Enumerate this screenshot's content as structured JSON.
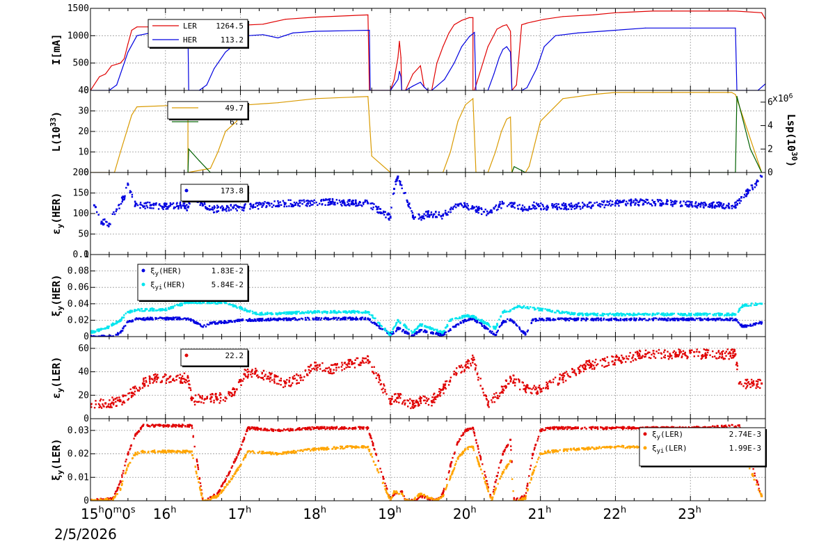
{
  "date_label": "2/5/2026",
  "x_axis": {
    "unit": "hour",
    "start_label": "15h0m0s",
    "labels": [
      "16h",
      "17h",
      "18h",
      "19h",
      "20h",
      "21h",
      "22h",
      "23h"
    ],
    "range": [
      15.0,
      24.0
    ]
  },
  "chart_data": [
    {
      "type": "line",
      "panel": "current",
      "ylabel": "I[mA]",
      "ylim": [
        0,
        1500
      ],
      "yticks": [
        "0",
        "500",
        "1000",
        "1500"
      ],
      "legend": [
        {
          "name": "LER",
          "value": "1264.5",
          "color": "#e00000"
        },
        {
          "name": "HER",
          "value": "113.2",
          "color": "#0000e0"
        }
      ],
      "series": [
        {
          "name": "LER",
          "color": "#e00000",
          "x": [
            15.0,
            15.12,
            15.2,
            15.28,
            15.4,
            15.45,
            15.5,
            15.55,
            15.62,
            16.3,
            16.3,
            16.32,
            17.0,
            17.3,
            17.6,
            18.0,
            18.7,
            18.72,
            19.0,
            19.05,
            19.1,
            19.12,
            19.14,
            19.15,
            19.2,
            19.3,
            19.4,
            19.45,
            19.5,
            19.52,
            19.55,
            19.62,
            19.7,
            19.78,
            19.85,
            19.95,
            20.05,
            20.1,
            20.1,
            20.12,
            20.3,
            20.42,
            20.5,
            20.55,
            20.6,
            20.62,
            20.68,
            20.75,
            20.8,
            20.82,
            21.05,
            21.3,
            21.7,
            22.0,
            22.5,
            23.0,
            23.6,
            23.95,
            24.0
          ],
          "y": [
            0,
            250,
            300,
            450,
            500,
            580,
            850,
            1100,
            1160,
            1160,
            1200,
            1180,
            1190,
            1210,
            1300,
            1340,
            1380,
            0,
            0,
            200,
            600,
            900,
            600,
            0,
            0,
            300,
            450,
            60,
            0,
            0,
            0,
            500,
            800,
            1050,
            1200,
            1280,
            1330,
            1330,
            0,
            0,
            800,
            1120,
            1180,
            1200,
            1080,
            0,
            100,
            1200,
            1220,
            1230,
            1300,
            1350,
            1380,
            1420,
            1450,
            1450,
            1450,
            1420,
            1300
          ]
        },
        {
          "name": "HER",
          "color": "#0000e0",
          "x": [
            15.0,
            15.25,
            15.35,
            15.5,
            15.62,
            15.8,
            16.3,
            16.31,
            16.45,
            16.55,
            16.65,
            16.8,
            16.95,
            17.1,
            17.3,
            17.5,
            17.7,
            18.0,
            18.72,
            18.73,
            19.0,
            19.05,
            19.1,
            19.12,
            19.14,
            19.15,
            19.2,
            19.3,
            19.4,
            19.45,
            19.5,
            19.52,
            19.55,
            19.72,
            19.85,
            19.95,
            20.05,
            20.12,
            20.14,
            20.3,
            20.38,
            20.45,
            20.5,
            20.55,
            20.6,
            20.62,
            20.75,
            20.82,
            20.95,
            21.05,
            21.2,
            21.5,
            22.0,
            22.4,
            23.0,
            23.6,
            23.62,
            23.9,
            24.0
          ],
          "y": [
            0,
            0,
            100,
            700,
            1000,
            1050,
            1060,
            0,
            0,
            100,
            400,
            700,
            870,
            1000,
            1020,
            960,
            1050,
            1080,
            1100,
            0,
            0,
            100,
            200,
            350,
            250,
            0,
            0,
            80,
            150,
            60,
            0,
            0,
            0,
            200,
            500,
            800,
            980,
            1060,
            0,
            0,
            300,
            600,
            750,
            800,
            700,
            0,
            0,
            50,
            400,
            800,
            1000,
            1050,
            1100,
            1140,
            1140,
            1140,
            0,
            0,
            120
          ]
        }
      ]
    },
    {
      "type": "line",
      "panel": "luminosity",
      "ylabel": "L(10^33)",
      "y2label": "Lsp(10^30)",
      "y2mult": "x10^6",
      "ylim": [
        0,
        40
      ],
      "y2lim": [
        0,
        7
      ],
      "yticks": [
        "0",
        "10",
        "20",
        "30",
        "40"
      ],
      "y2ticks": [
        "0",
        "2",
        "4",
        "6"
      ],
      "legend": [
        {
          "value": "49.7",
          "color": "#d99a00"
        },
        {
          "value": "6.1",
          "color": "#006000"
        }
      ],
      "series": [
        {
          "name": "L",
          "color": "#d99a00",
          "x": [
            15.0,
            15.32,
            15.4,
            15.5,
            15.55,
            15.62,
            16.3,
            16.3,
            16.6,
            16.7,
            16.8,
            16.95,
            17.0,
            17.1,
            17.5,
            18.0,
            18.7,
            18.75,
            19.0,
            19.5,
            19.7,
            19.8,
            19.9,
            20.0,
            20.1,
            20.14,
            20.3,
            20.4,
            20.48,
            20.55,
            20.6,
            20.62,
            20.8,
            20.85,
            21.0,
            21.3,
            21.7,
            22.0,
            22.5,
            23.0,
            23.55,
            23.6,
            23.95
          ],
          "y": [
            0,
            0,
            10,
            22,
            28,
            32,
            33,
            0,
            2,
            10,
            20,
            25,
            32,
            33,
            34,
            36,
            37,
            8,
            0,
            0,
            0,
            10,
            25,
            33,
            36,
            0,
            0,
            10,
            20,
            26,
            27,
            0,
            0,
            3,
            25,
            36,
            38,
            39,
            39,
            39,
            39,
            38,
            0
          ]
        },
        {
          "name": "Lsp",
          "color": "#006000",
          "x": [
            16.3,
            16.31,
            16.45,
            16.6,
            20.62,
            20.65,
            20.8,
            23.6,
            23.62,
            23.8,
            23.95
          ],
          "y": [
            0,
            2,
            1,
            0,
            0,
            0.5,
            0,
            0,
            6.5,
            2,
            0
          ]
        }
      ]
    },
    {
      "type": "scatter",
      "panel": "emittance_her",
      "ylabel": "εy(HER)",
      "ylim": [
        0,
        200
      ],
      "yticks": [
        "0",
        "50",
        "100",
        "150",
        "200"
      ],
      "legend": [
        {
          "value": "173.8",
          "color": "#0000e0"
        }
      ],
      "series": [
        {
          "color": "#0000e0",
          "x": [
            15.05,
            15.15,
            15.25,
            15.35,
            15.45,
            15.5,
            15.6,
            15.8,
            16.0,
            16.2,
            16.3,
            16.35,
            16.5,
            16.6,
            16.9,
            17.05,
            17.3,
            17.6,
            17.9,
            18.2,
            18.5,
            18.7,
            19.0,
            19.05,
            19.1,
            19.3,
            19.4,
            19.5,
            19.7,
            19.8,
            19.9,
            20.1,
            20.3,
            20.45,
            20.6,
            20.8,
            20.9,
            21.1,
            21.4,
            21.7,
            22.0,
            22.4,
            22.8,
            23.2,
            23.6,
            23.95
          ],
          "y": [
            120,
            80,
            75,
            110,
            140,
            170,
            120,
            120,
            118,
            120,
            115,
            150,
            120,
            110,
            115,
            115,
            120,
            125,
            125,
            128,
            125,
            125,
            90,
            160,
            190,
            95,
            90,
            100,
            95,
            110,
            120,
            115,
            100,
            120,
            125,
            110,
            120,
            115,
            118,
            120,
            125,
            128,
            125,
            120,
            120,
            190
          ]
        }
      ]
    },
    {
      "type": "scatter",
      "panel": "tune_shift_her",
      "ylabel": "ξy(HER)",
      "ylim": [
        0,
        0.1
      ],
      "yticks": [
        "0",
        "0.02",
        "0.04",
        "0.06",
        "0.08",
        "0.1"
      ],
      "legend": [
        {
          "name": "ξy(HER)",
          "value": "1.83E-2",
          "color": "#0000e0"
        },
        {
          "name": "ξyi(HER)",
          "value": "5.84E-2",
          "color": "#00e5ee"
        }
      ],
      "series": [
        {
          "name": "ξy(HER)",
          "color": "#0000e0",
          "x": [
            15.0,
            15.3,
            15.4,
            15.5,
            15.6,
            15.8,
            16.0,
            16.3,
            16.5,
            16.6,
            16.8,
            17.0,
            17.5,
            18.0,
            18.5,
            18.7,
            19.0,
            19.1,
            19.3,
            19.4,
            19.7,
            19.85,
            20.0,
            20.1,
            20.4,
            20.5,
            20.6,
            20.8,
            20.9,
            21.0,
            21.5,
            22.0,
            22.5,
            23.0,
            23.6,
            23.7,
            23.95
          ],
          "y": [
            0,
            0,
            0.005,
            0.018,
            0.021,
            0.022,
            0.022,
            0.022,
            0.012,
            0.016,
            0.018,
            0.02,
            0.021,
            0.022,
            0.022,
            0.022,
            0.002,
            0.01,
            0.001,
            0.008,
            0.002,
            0.012,
            0.02,
            0.022,
            0.002,
            0.018,
            0.021,
            0.003,
            0.02,
            0.021,
            0.021,
            0.021,
            0.021,
            0.021,
            0.021,
            0.012,
            0.017
          ]
        },
        {
          "name": "ξyi(HER)",
          "color": "#00e5ee",
          "x": [
            15.0,
            15.2,
            15.4,
            15.5,
            15.6,
            15.8,
            16.0,
            16.3,
            16.5,
            16.8,
            17.0,
            17.2,
            17.5,
            18.0,
            18.5,
            18.7,
            19.0,
            19.1,
            19.3,
            19.4,
            19.7,
            19.8,
            20.0,
            20.1,
            20.4,
            20.5,
            20.6,
            20.7,
            21.0,
            21.5,
            22.0,
            22.5,
            23.0,
            23.6,
            23.7,
            23.95
          ],
          "y": [
            0.005,
            0.01,
            0.02,
            0.03,
            0.032,
            0.033,
            0.033,
            0.042,
            0.042,
            0.041,
            0.035,
            0.028,
            0.028,
            0.03,
            0.03,
            0.03,
            0.002,
            0.02,
            0.005,
            0.015,
            0.005,
            0.02,
            0.025,
            0.025,
            0.01,
            0.03,
            0.032,
            0.037,
            0.033,
            0.027,
            0.027,
            0.027,
            0.027,
            0.027,
            0.038,
            0.04
          ]
        }
      ]
    },
    {
      "type": "scatter",
      "panel": "emittance_ler",
      "ylabel": "εy(LER)",
      "ylim": [
        0,
        70
      ],
      "yticks": [
        "0",
        "20",
        "40",
        "60"
      ],
      "legend": [
        {
          "value": "22.2",
          "color": "#e00000"
        }
      ],
      "series": [
        {
          "color": "#e00000",
          "x": [
            15.0,
            15.2,
            15.4,
            15.55,
            15.7,
            15.9,
            16.1,
            16.3,
            16.35,
            16.6,
            16.8,
            16.95,
            17.05,
            17.2,
            17.4,
            17.6,
            17.8,
            18.0,
            18.2,
            18.5,
            18.7,
            19.0,
            19.1,
            19.3,
            19.4,
            19.55,
            19.7,
            19.85,
            20.0,
            20.1,
            20.3,
            20.5,
            20.6,
            20.8,
            21.0,
            21.3,
            21.6,
            22.0,
            22.4,
            22.8,
            23.2,
            23.6,
            23.65,
            23.95
          ],
          "y": [
            12,
            13,
            15,
            22,
            30,
            35,
            33,
            35,
            16,
            17,
            18,
            25,
            38,
            40,
            35,
            30,
            35,
            45,
            42,
            47,
            50,
            15,
            18,
            12,
            15,
            15,
            25,
            38,
            45,
            50,
            12,
            25,
            35,
            25,
            25,
            35,
            45,
            50,
            55,
            55,
            55,
            55,
            30,
            30
          ]
        }
      ]
    },
    {
      "type": "scatter",
      "panel": "tune_shift_ler",
      "ylabel": "ξy(LER)",
      "ylim": [
        0,
        0.035
      ],
      "yticks": [
        "0",
        "0.01",
        "0.02",
        "0.03"
      ],
      "legend": [
        {
          "name": "ξy(LER)",
          "value": "2.74E-3",
          "color": "#e00000"
        },
        {
          "name": "ξyi(LER)",
          "value": "1.99E-3",
          "color": "#ffa500"
        }
      ],
      "series": [
        {
          "name": "ξy(LER)",
          "color": "#e00000",
          "x": [
            15.0,
            15.3,
            15.4,
            15.5,
            15.6,
            15.7,
            16.0,
            16.35,
            16.5,
            16.7,
            16.85,
            17.0,
            17.1,
            17.5,
            18.0,
            18.5,
            18.7,
            19.0,
            19.05,
            19.15,
            19.2,
            19.3,
            19.4,
            19.6,
            19.7,
            19.8,
            19.9,
            20.0,
            20.1,
            20.35,
            20.4,
            20.5,
            20.6,
            20.65,
            20.8,
            20.9,
            21.0,
            21.1,
            21.5,
            22.0,
            22.5,
            23.0,
            23.65,
            23.95
          ],
          "y": [
            0,
            0.001,
            0.008,
            0.02,
            0.028,
            0.032,
            0.032,
            0.032,
            0,
            0.003,
            0.012,
            0.022,
            0.031,
            0.03,
            0.031,
            0.031,
            0.031,
            0,
            0.003,
            0.004,
            0,
            0,
            0.002,
            0,
            0.003,
            0.015,
            0.025,
            0.03,
            0.031,
            0,
            0.008,
            0.02,
            0.026,
            0,
            0.002,
            0.02,
            0.03,
            0.031,
            0.031,
            0.031,
            0.031,
            0.031,
            0.032,
            0.002
          ]
        },
        {
          "name": "ξyi(LER)",
          "color": "#ffa500",
          "x": [
            15.0,
            15.3,
            15.4,
            15.5,
            15.6,
            15.7,
            16.0,
            16.35,
            16.5,
            16.7,
            16.85,
            17.0,
            17.1,
            17.5,
            18.0,
            18.5,
            18.7,
            19.0,
            19.05,
            19.15,
            19.2,
            19.3,
            19.4,
            19.6,
            19.7,
            19.8,
            19.9,
            20.0,
            20.1,
            20.35,
            20.4,
            20.5,
            20.6,
            20.65,
            20.8,
            20.9,
            21.0,
            21.1,
            21.5,
            22.0,
            22.5,
            23.0,
            23.65,
            23.95
          ],
          "y": [
            0,
            0.0005,
            0.005,
            0.015,
            0.02,
            0.021,
            0.021,
            0.021,
            0,
            0.002,
            0.008,
            0.015,
            0.021,
            0.02,
            0.022,
            0.023,
            0.023,
            0,
            0.004,
            0.003,
            0,
            0,
            0.003,
            0,
            0.002,
            0.01,
            0.018,
            0.022,
            0.023,
            0,
            0.005,
            0.012,
            0.017,
            0,
            0.001,
            0.012,
            0.02,
            0.021,
            0.022,
            0.023,
            0.023,
            0.024,
            0.024,
            0.002
          ]
        }
      ]
    }
  ]
}
